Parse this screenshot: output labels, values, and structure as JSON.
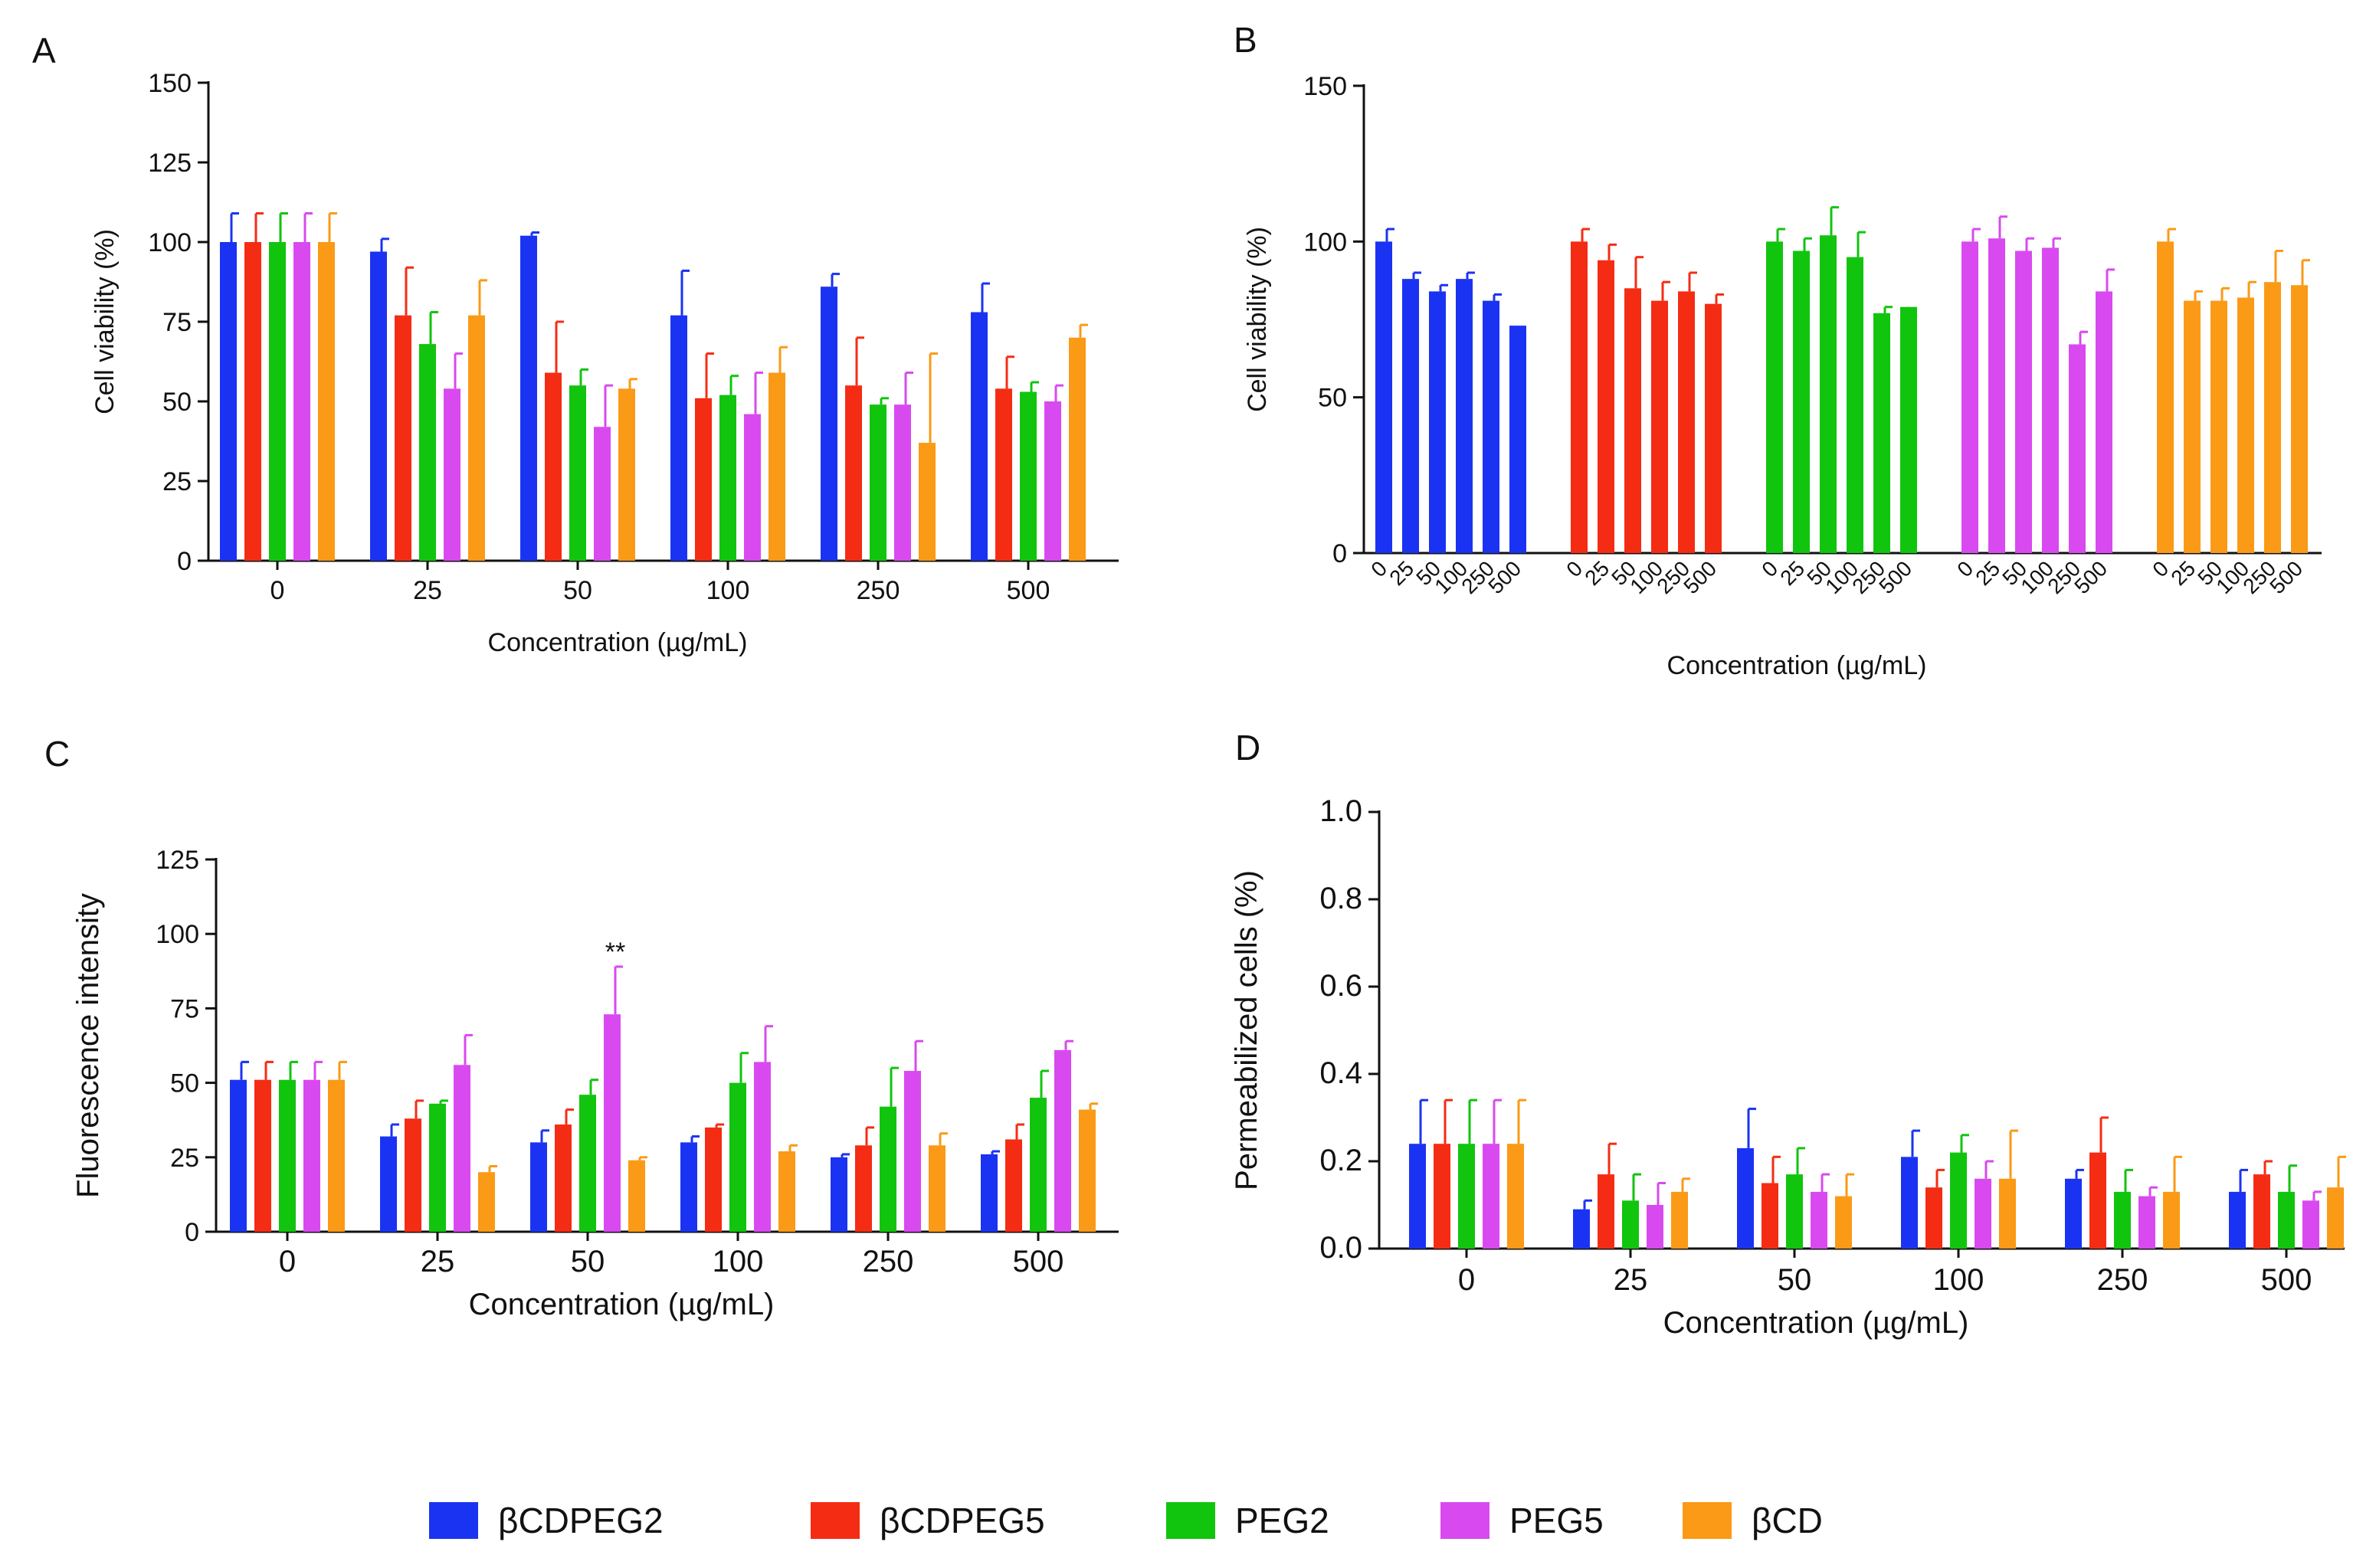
{
  "colors": {
    "bCDPEG2": "#1a33f2",
    "bCDPEG5": "#f52c14",
    "PEG2": "#11c40e",
    "PEG5": "#d84aef",
    "bCD": "#fa9a16"
  },
  "legend": [
    {
      "key": "bCDPEG2",
      "label": "βCDPEG2"
    },
    {
      "key": "bCDPEG5",
      "label": "βCDPEG5"
    },
    {
      "key": "PEG2",
      "label": "PEG2"
    },
    {
      "key": "PEG5",
      "label": "PEG5"
    },
    {
      "key": "bCD",
      "label": "βCD"
    }
  ],
  "chart_data": [
    {
      "panel": "A",
      "type": "bar",
      "ylabel": "Cell viability (%)",
      "xlabel": "Concentration  (µg/mL)",
      "ylim": [
        0,
        150
      ],
      "yticks": [
        0,
        25,
        50,
        75,
        100,
        125,
        150
      ],
      "categories": [
        "0",
        "25",
        "50",
        "100",
        "250",
        "500"
      ],
      "series": [
        {
          "name": "βCDPEG2",
          "key": "bCDPEG2",
          "values": [
            100,
            97,
            102,
            77,
            86,
            78
          ],
          "errors": [
            9,
            4,
            1,
            14,
            4,
            9
          ]
        },
        {
          "name": "βCDPEG5",
          "key": "bCDPEG5",
          "values": [
            100,
            77,
            59,
            51,
            55,
            54
          ],
          "errors": [
            9,
            15,
            16,
            14,
            15,
            10
          ]
        },
        {
          "name": "PEG2",
          "key": "PEG2",
          "values": [
            100,
            68,
            55,
            52,
            49,
            53
          ],
          "errors": [
            9,
            10,
            5,
            6,
            2,
            3
          ]
        },
        {
          "name": "PEG5",
          "key": "PEG5",
          "values": [
            100,
            54,
            42,
            46,
            49,
            50
          ],
          "errors": [
            9,
            11,
            13,
            13,
            10,
            5
          ]
        },
        {
          "name": "βCD",
          "key": "bCD",
          "values": [
            100,
            77,
            54,
            59,
            37,
            70
          ],
          "errors": [
            9,
            11,
            3,
            8,
            28,
            4
          ]
        }
      ]
    },
    {
      "panel": "B",
      "type": "bar",
      "ylabel": "Cell viability (%)",
      "xlabel": "Concentration (µg/mL)",
      "ylim": [
        0,
        150
      ],
      "yticks": [
        0,
        50,
        100,
        150
      ],
      "categories": [
        "0",
        "25",
        "50",
        "100",
        "250",
        "500"
      ],
      "series": [
        {
          "name": "βCDPEG2",
          "key": "bCDPEG2",
          "values": [
            100,
            88,
            84,
            88,
            81,
            73
          ],
          "errors": [
            4,
            2,
            2,
            2,
            2,
            0
          ]
        },
        {
          "name": "βCDPEG5",
          "key": "bCDPEG5",
          "values": [
            100,
            94,
            85,
            81,
            84,
            80
          ],
          "errors": [
            4,
            5,
            10,
            6,
            6,
            3
          ]
        },
        {
          "name": "PEG2",
          "key": "PEG2",
          "values": [
            100,
            97,
            102,
            95,
            77,
            79
          ],
          "errors": [
            4,
            4,
            9,
            8,
            2,
            0
          ]
        },
        {
          "name": "PEG5",
          "key": "PEG5",
          "values": [
            100,
            101,
            97,
            98,
            67,
            84
          ],
          "errors": [
            4,
            7,
            4,
            3,
            4,
            7
          ]
        },
        {
          "name": "βCD",
          "key": "bCD",
          "values": [
            100,
            81,
            81,
            82,
            87,
            86
          ],
          "errors": [
            4,
            3,
            4,
            5,
            10,
            8
          ]
        }
      ]
    },
    {
      "panel": "C",
      "type": "bar",
      "ylabel": "Fluorescence intensity",
      "xlabel": "Concentration  (µg/mL)",
      "ylim": [
        0,
        125
      ],
      "yticks": [
        0,
        25,
        50,
        75,
        100,
        125
      ],
      "categories": [
        "0",
        "25",
        "50",
        "100",
        "250",
        "500"
      ],
      "annotation": {
        "text": "**",
        "category": "50",
        "series": "PEG5"
      },
      "series": [
        {
          "name": "βCDPEG2",
          "key": "bCDPEG2",
          "values": [
            51,
            32,
            30,
            30,
            25,
            26
          ],
          "errors": [
            6,
            4,
            4,
            2,
            1,
            1
          ]
        },
        {
          "name": "βCDPEG5",
          "key": "bCDPEG5",
          "values": [
            51,
            38,
            36,
            35,
            29,
            31
          ],
          "errors": [
            6,
            6,
            5,
            1,
            6,
            5
          ]
        },
        {
          "name": "PEG2",
          "key": "PEG2",
          "values": [
            51,
            43,
            46,
            50,
            42,
            45
          ],
          "errors": [
            6,
            1,
            5,
            10,
            13,
            9
          ]
        },
        {
          "name": "PEG5",
          "key": "PEG5",
          "values": [
            51,
            56,
            73,
            57,
            54,
            61
          ],
          "errors": [
            6,
            10,
            16,
            12,
            10,
            3
          ]
        },
        {
          "name": "βCD",
          "key": "bCD",
          "values": [
            51,
            20,
            24,
            27,
            29,
            41
          ],
          "errors": [
            6,
            2,
            1,
            2,
            4,
            2
          ]
        }
      ]
    },
    {
      "panel": "D",
      "type": "bar",
      "ylabel": "Permeabilized cells (%)",
      "xlabel": "Concentration  (µg/mL)",
      "ylim": [
        0,
        1.0
      ],
      "yticks": [
        "0.0",
        "0.2",
        "0.4",
        "0.6",
        "0.8",
        "1.0"
      ],
      "categories": [
        "0",
        "25",
        "50",
        "100",
        "250",
        "500"
      ],
      "series": [
        {
          "name": "βCDPEG2",
          "key": "bCDPEG2",
          "values": [
            0.24,
            0.09,
            0.23,
            0.21,
            0.16,
            0.13
          ],
          "errors": [
            0.1,
            0.02,
            0.09,
            0.06,
            0.02,
            0.05
          ]
        },
        {
          "name": "βCDPEG5",
          "key": "bCDPEG5",
          "values": [
            0.24,
            0.17,
            0.15,
            0.14,
            0.22,
            0.17
          ],
          "errors": [
            0.1,
            0.07,
            0.06,
            0.04,
            0.08,
            0.03
          ]
        },
        {
          "name": "PEG2",
          "key": "PEG2",
          "values": [
            0.24,
            0.11,
            0.17,
            0.22,
            0.13,
            0.13
          ],
          "errors": [
            0.1,
            0.06,
            0.06,
            0.04,
            0.05,
            0.06
          ]
        },
        {
          "name": "PEG5",
          "key": "PEG5",
          "values": [
            0.24,
            0.1,
            0.13,
            0.16,
            0.12,
            0.11
          ],
          "errors": [
            0.1,
            0.05,
            0.04,
            0.04,
            0.02,
            0.02
          ]
        },
        {
          "name": "βCD",
          "key": "bCD",
          "values": [
            0.24,
            0.13,
            0.12,
            0.16,
            0.13,
            0.14
          ],
          "errors": [
            0.1,
            0.03,
            0.05,
            0.11,
            0.08,
            0.07
          ]
        }
      ]
    }
  ]
}
